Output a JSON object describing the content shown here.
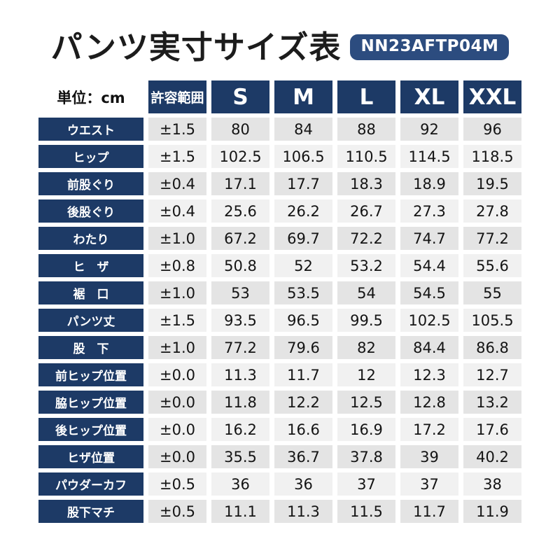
{
  "header": {
    "title": "パンツ実寸サイズ表",
    "product_code": "NN23AFTP04M"
  },
  "colors": {
    "table_navy": "#1d3a66",
    "badge_navy": "#2c4c7f",
    "cell_gray_dark": "#e4e4e4",
    "cell_gray_light": "#f1f1f1",
    "text_black": "#141414",
    "text_white": "#ffffff"
  },
  "chart_data": {
    "type": "table",
    "title": "パンツ実寸サイズ表",
    "product_code": "NN23AFTP04M",
    "unit_label": "単位：cm",
    "columns": [
      "許容範囲",
      "S",
      "M",
      "L",
      "XL",
      "XXL"
    ],
    "rows": [
      {
        "label": "ウエスト",
        "values": [
          "±1.5",
          "80",
          "84",
          "88",
          "92",
          "96"
        ]
      },
      {
        "label": "ヒップ",
        "values": [
          "±1.5",
          "102.5",
          "106.5",
          "110.5",
          "114.5",
          "118.5"
        ]
      },
      {
        "label": "前股ぐり",
        "values": [
          "±0.4",
          "17.1",
          "17.7",
          "18.3",
          "18.9",
          "19.5"
        ]
      },
      {
        "label": "後股ぐり",
        "values": [
          "±0.4",
          "25.6",
          "26.2",
          "26.7",
          "27.3",
          "27.8"
        ]
      },
      {
        "label": "わたり",
        "values": [
          "±1.0",
          "67.2",
          "69.7",
          "72.2",
          "74.7",
          "77.2"
        ]
      },
      {
        "label": "ヒ　ザ",
        "values": [
          "±0.8",
          "50.8",
          "52",
          "53.2",
          "54.4",
          "55.6"
        ]
      },
      {
        "label": "裾　口",
        "values": [
          "±1.0",
          "53",
          "53.5",
          "54",
          "54.5",
          "55"
        ]
      },
      {
        "label": "パンツ丈",
        "values": [
          "±1.5",
          "93.5",
          "96.5",
          "99.5",
          "102.5",
          "105.5"
        ]
      },
      {
        "label": "股　下",
        "values": [
          "±1.0",
          "77.2",
          "79.6",
          "82",
          "84.4",
          "86.8"
        ]
      },
      {
        "label": "前ヒップ位置",
        "values": [
          "±0.0",
          "11.3",
          "11.7",
          "12",
          "12.3",
          "12.7"
        ]
      },
      {
        "label": "脇ヒップ位置",
        "values": [
          "±0.0",
          "11.8",
          "12.2",
          "12.5",
          "12.8",
          "13.2"
        ]
      },
      {
        "label": "後ヒップ位置",
        "values": [
          "±0.0",
          "16.2",
          "16.6",
          "16.9",
          "17.2",
          "17.6"
        ]
      },
      {
        "label": "ヒザ位置",
        "values": [
          "±0.0",
          "35.5",
          "36.7",
          "37.8",
          "39",
          "40.2"
        ]
      },
      {
        "label": "パウダーカフ",
        "values": [
          "±0.5",
          "36",
          "36",
          "37",
          "37",
          "38"
        ]
      },
      {
        "label": "股下マチ",
        "values": [
          "±0.5",
          "11.1",
          "11.3",
          "11.5",
          "11.7",
          "11.9"
        ]
      }
    ]
  }
}
